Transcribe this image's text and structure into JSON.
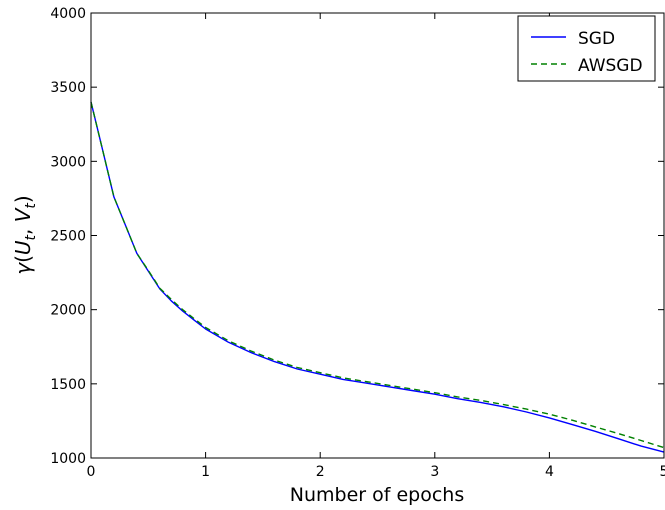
{
  "chart_data": {
    "type": "line",
    "title": "",
    "xlabel": "Number of epochs",
    "ylabel": "γ(U_t, V_t)",
    "xlim": [
      0,
      5
    ],
    "ylim": [
      1000,
      4000
    ],
    "xticks": [
      0,
      1,
      2,
      3,
      4,
      5
    ],
    "yticks": [
      1000,
      1500,
      2000,
      2500,
      3000,
      3500,
      4000
    ],
    "grid": false,
    "legend_position": "top-right",
    "series": [
      {
        "name": "SGD",
        "color": "#0000ff",
        "style": "solid",
        "x": [
          0,
          0.1,
          0.2,
          0.3,
          0.4,
          0.5,
          0.6,
          0.7,
          0.8,
          0.9,
          1.0,
          1.2,
          1.4,
          1.6,
          1.8,
          2.0,
          2.2,
          2.4,
          2.6,
          2.8,
          3.0,
          3.2,
          3.4,
          3.6,
          3.8,
          4.0,
          4.2,
          4.4,
          4.6,
          4.8,
          5.0
        ],
        "y": [
          3400,
          3080,
          2760,
          2570,
          2380,
          2260,
          2140,
          2060,
          1990,
          1930,
          1870,
          1780,
          1710,
          1650,
          1600,
          1565,
          1530,
          1505,
          1480,
          1455,
          1430,
          1400,
          1375,
          1345,
          1310,
          1270,
          1225,
          1180,
          1130,
          1080,
          1040
        ]
      },
      {
        "name": "AWSGD",
        "color": "#008000",
        "style": "dashed",
        "x": [
          0,
          0.1,
          0.2,
          0.3,
          0.4,
          0.5,
          0.6,
          0.7,
          0.8,
          0.9,
          1.0,
          1.2,
          1.4,
          1.6,
          1.8,
          2.0,
          2.2,
          2.4,
          2.6,
          2.8,
          3.0,
          3.2,
          3.4,
          3.6,
          3.8,
          4.0,
          4.2,
          4.4,
          4.6,
          4.8,
          5.0
        ],
        "y": [
          3400,
          3080,
          2760,
          2570,
          2380,
          2265,
          2145,
          2070,
          2000,
          1940,
          1880,
          1790,
          1720,
          1660,
          1610,
          1575,
          1540,
          1515,
          1490,
          1465,
          1440,
          1412,
          1388,
          1360,
          1330,
          1295,
          1255,
          1210,
          1165,
          1118,
          1070
        ]
      }
    ]
  }
}
